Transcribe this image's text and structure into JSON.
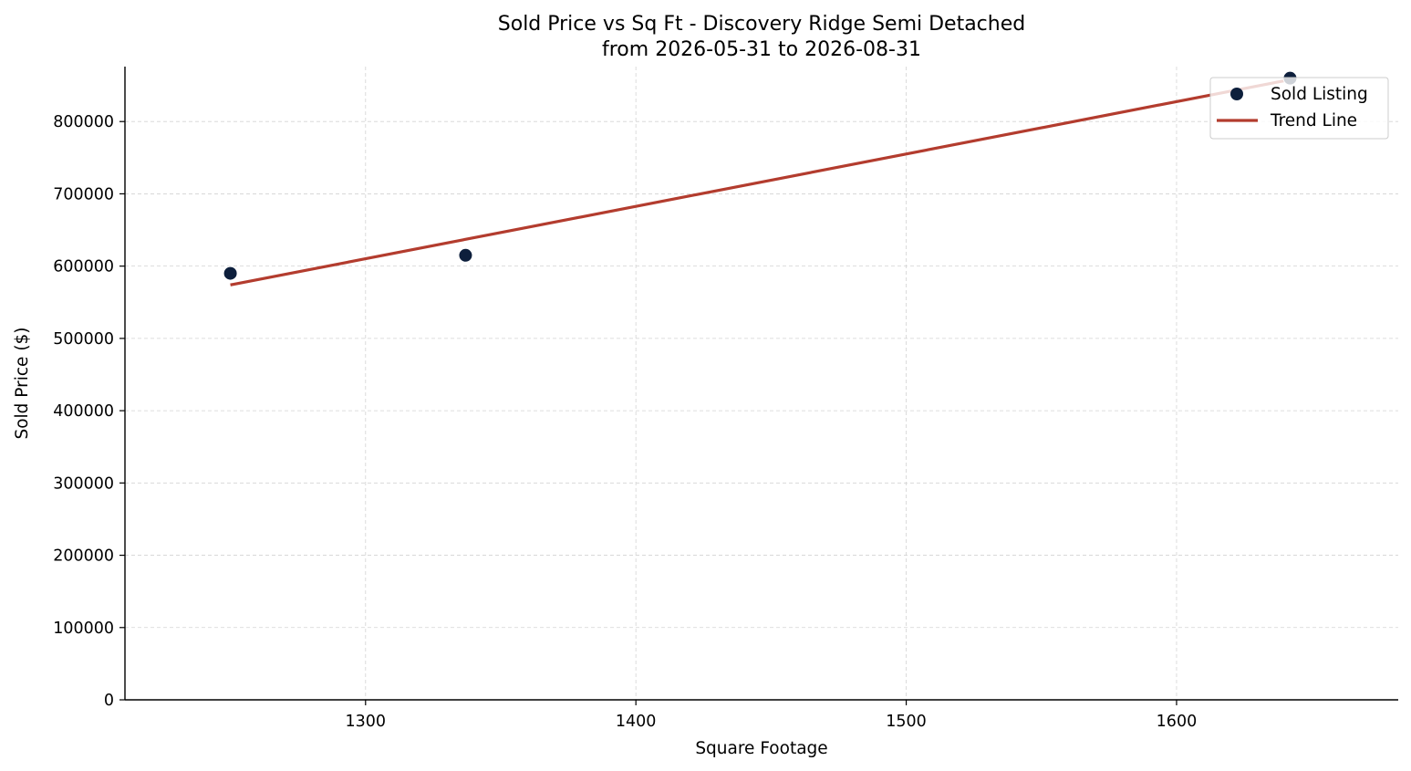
{
  "chart_data": {
    "type": "scatter",
    "title": "Sold Price vs Sq Ft - Discovery Ridge Semi Detached",
    "subtitle": "from 2026-05-31 to 2026-08-31",
    "xlabel": "Square Footage",
    "ylabel": "Sold Price ($)",
    "xlim": [
      1211,
      1682
    ],
    "ylim": [
      0,
      876000
    ],
    "xticks": [
      1300,
      1400,
      1500,
      1600
    ],
    "yticks": [
      0,
      100000,
      200000,
      300000,
      400000,
      500000,
      600000,
      700000,
      800000
    ],
    "grid": true,
    "legend_position": "top-right",
    "series": [
      {
        "name": "Sold Listing",
        "kind": "scatter",
        "color": "#0d1f3c",
        "points": [
          {
            "x": 1250,
            "y": 590000
          },
          {
            "x": 1337,
            "y": 615000
          },
          {
            "x": 1642,
            "y": 860000
          }
        ]
      },
      {
        "name": "Trend Line",
        "kind": "line",
        "color": "#b33c2e",
        "points": [
          {
            "x": 1250,
            "y": 574000
          },
          {
            "x": 1642,
            "y": 858000
          }
        ]
      }
    ]
  }
}
